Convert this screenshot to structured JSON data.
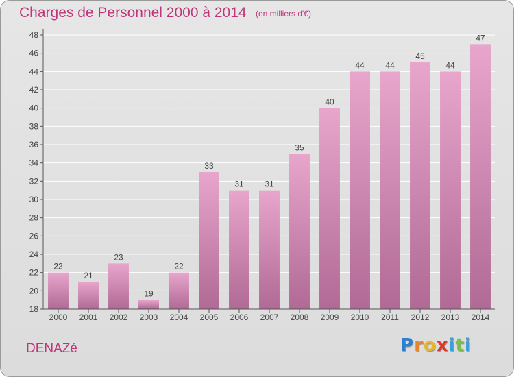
{
  "header": {
    "title": "Charges de Personnel 2000 à 2014",
    "subtitle": "(en milliers d'€)"
  },
  "footer": {
    "commune": "DENAZé",
    "logo_letters": [
      "P",
      "r",
      "o",
      "x",
      "i",
      "t",
      "i"
    ],
    "logo_colors": [
      "#2f7fd0",
      "#e8852a",
      "#e8b42a",
      "#d93a2a",
      "#3aa0d8",
      "#7cc04a",
      "#3aa0d8"
    ]
  },
  "colors": {
    "bar_top": "#e8a6cc",
    "bar_bottom": "#b06a95",
    "axis": "#555555",
    "grid": "#ffffff",
    "text": "#444444",
    "accent": "#c0357a"
  },
  "chart_data": {
    "type": "bar",
    "title": "Charges de Personnel 2000 à 2014",
    "subtitle": "(en milliers d'€)",
    "categories": [
      "2000",
      "2001",
      "2002",
      "2003",
      "2004",
      "2005",
      "2006",
      "2007",
      "2008",
      "2009",
      "2010",
      "2011",
      "2012",
      "2013",
      "2014"
    ],
    "values": [
      22,
      21,
      23,
      19,
      22,
      33,
      31,
      31,
      35,
      40,
      44,
      44,
      45,
      44,
      47
    ],
    "ylim": [
      18,
      48
    ],
    "yticks": [
      18,
      20,
      22,
      24,
      26,
      28,
      30,
      32,
      34,
      36,
      38,
      40,
      42,
      44,
      46,
      48
    ],
    "grid": true,
    "data_labels": true,
    "xlabel": "",
    "ylabel": ""
  }
}
